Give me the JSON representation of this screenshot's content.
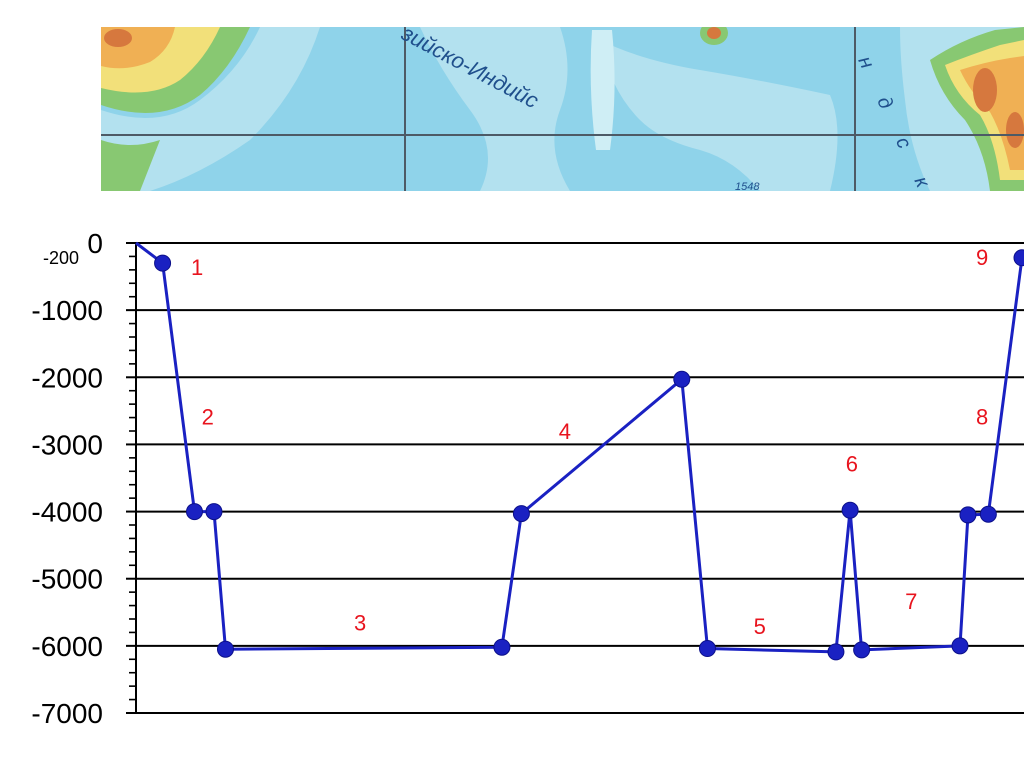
{
  "map": {
    "labels": [
      "зийско-Индийс",
      "н д с к и",
      "1548"
    ],
    "colors": {
      "deep": "#8fd3ea",
      "mid": "#b3e1ef",
      "shelf": "#cfeef5",
      "lowland": "#88c872",
      "hill": "#f2e07a",
      "upland": "#f0b054",
      "mountain": "#d6783e",
      "grid": "#4d5a66"
    }
  },
  "chart_data": {
    "type": "line",
    "title": "",
    "xlabel": "",
    "ylabel": "",
    "ylim": [
      -7000,
      0
    ],
    "y_ticks": [
      0,
      -1000,
      -2000,
      -3000,
      -4000,
      -5000,
      -6000,
      -7000
    ],
    "y_tick_labels": [
      "0",
      "-1000",
      "-2000",
      "-3000",
      "-4000",
      "-5000",
      "-6000",
      "-7000"
    ],
    "extra_y_label": {
      "value": -200,
      "text": "-200"
    },
    "grid": true,
    "x_range": [
      0,
      100
    ],
    "series": [
      {
        "color": "#1a21c2",
        "points": [
          {
            "x": 0,
            "y": 0,
            "marker": false
          },
          {
            "x": 3,
            "y": -300,
            "marker": true
          },
          {
            "x": 6.6,
            "y": -4000,
            "marker": true
          },
          {
            "x": 8.8,
            "y": -4000,
            "marker": true
          },
          {
            "x": 10.1,
            "y": -6050,
            "marker": true
          },
          {
            "x": 41.3,
            "y": -6020,
            "marker": true
          },
          {
            "x": 43.5,
            "y": -4030,
            "marker": true
          },
          {
            "x": 61.6,
            "y": -2030,
            "marker": true
          },
          {
            "x": 64.5,
            "y": -6040,
            "marker": true
          },
          {
            "x": 79.0,
            "y": -6090,
            "marker": true
          },
          {
            "x": 80.6,
            "y": -3980,
            "marker": true
          },
          {
            "x": 81.9,
            "y": -6060,
            "marker": true
          },
          {
            "x": 93.0,
            "y": -6000,
            "marker": true
          },
          {
            "x": 93.9,
            "y": -4050,
            "marker": true
          },
          {
            "x": 96.2,
            "y": -4040,
            "marker": true
          },
          {
            "x": 100,
            "y": -220,
            "marker": true
          }
        ]
      }
    ],
    "segment_labels": [
      {
        "text": "1",
        "x": 6.9,
        "y": -480,
        "color": "#e8141e"
      },
      {
        "text": "2",
        "x": 8.1,
        "y": -2700,
        "color": "#e8141e"
      },
      {
        "text": "3",
        "x": 25.3,
        "y": -5770,
        "color": "#e8141e"
      },
      {
        "text": "4",
        "x": 48.4,
        "y": -2920,
        "color": "#e8141e"
      },
      {
        "text": "5",
        "x": 70.4,
        "y": -5820,
        "color": "#e8141e"
      },
      {
        "text": "6",
        "x": 80.8,
        "y": -3400,
        "color": "#e8141e"
      },
      {
        "text": "7",
        "x": 87.5,
        "y": -5450,
        "color": "#e8141e"
      },
      {
        "text": "8",
        "x": 95.5,
        "y": -2700,
        "color": "#e8141e"
      },
      {
        "text": "9",
        "x": 95.5,
        "y": -330,
        "color": "#e8141e"
      }
    ]
  }
}
